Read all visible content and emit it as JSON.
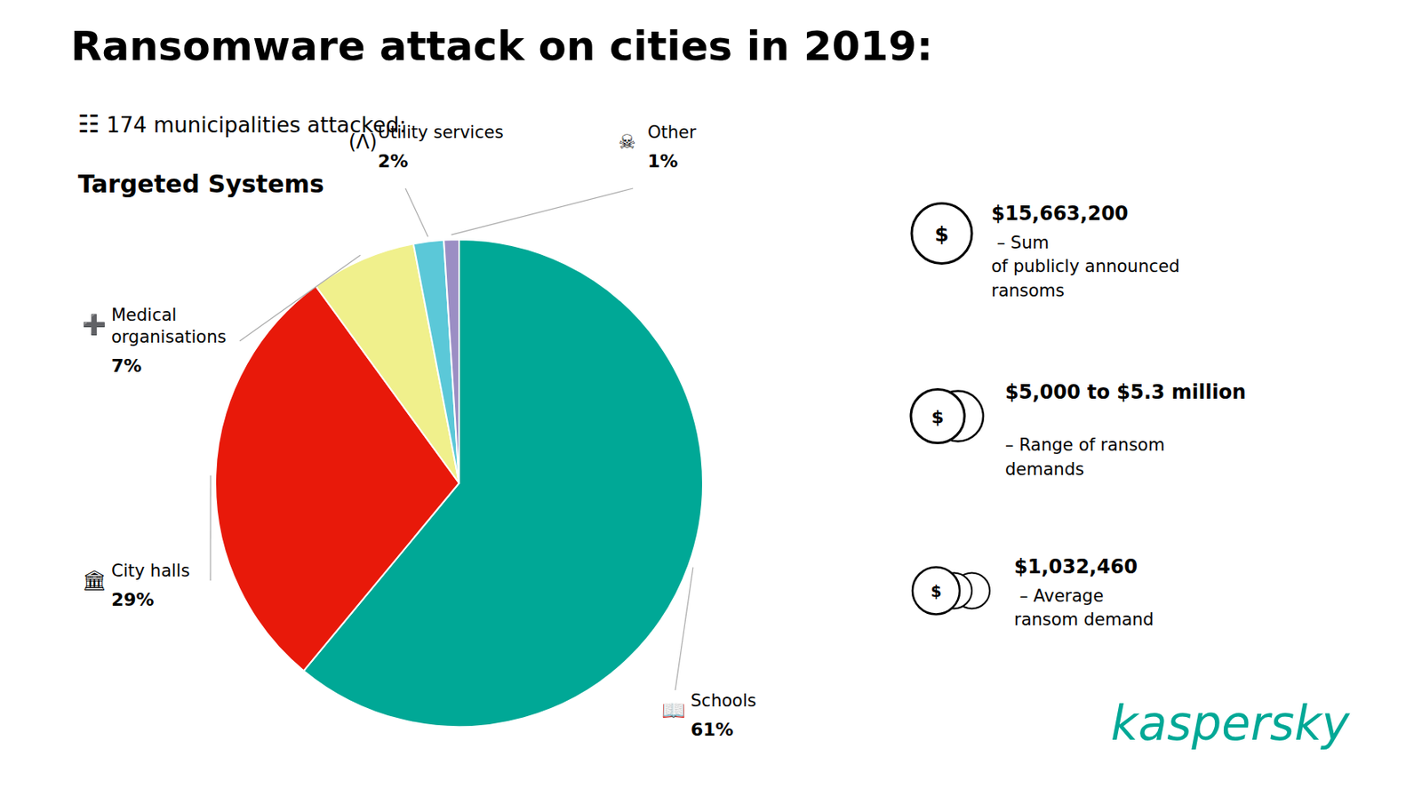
{
  "chart_data": {
    "type": "pie",
    "title": "Ransomware attack on cities in 2019:",
    "subtitle_icon": "☷",
    "subtitle": "174 municipalities attacked:",
    "section_title": "Targeted Systems",
    "categories": [
      "Schools",
      "City halls",
      "Medical\norganisations",
      "Utility services",
      "Other"
    ],
    "values": [
      61,
      29,
      7,
      2,
      1
    ],
    "value_labels": [
      "61%",
      "29%",
      "7%",
      "2%",
      "1%"
    ],
    "colors": [
      "#00A896",
      "#E8190A",
      "#F0F08C",
      "#5BC8D8",
      "#9B8EC4"
    ],
    "icons": [
      "📖",
      "🏛",
      "➕",
      "(Λ)",
      "☠"
    ],
    "annotations": [
      {
        "bold": "$15,663,200",
        "text": " – Sum\nof publicly announced\nransoms"
      },
      {
        "bold": "$5,000 to $5.3 million",
        "text": "\n– Range of ransom\ndemands"
      },
      {
        "bold": "$1,032,460",
        "text": " – Average\nransom demand"
      }
    ],
    "coin_symbol": "$",
    "logo": {
      "text": "kaspersky",
      "color": "#00A896"
    }
  }
}
